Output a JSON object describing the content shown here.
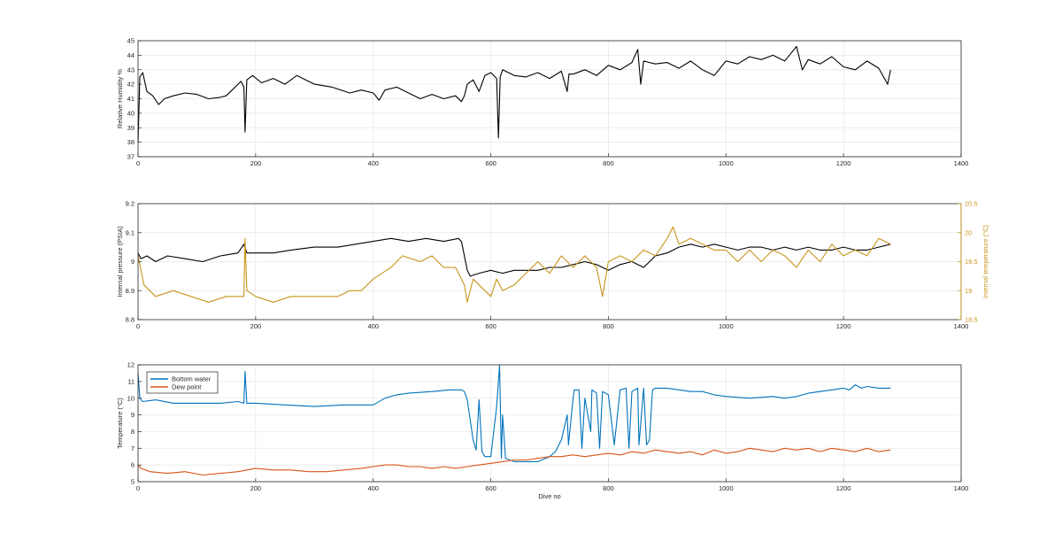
{
  "figure": {
    "xlabel": "Dive no"
  },
  "chart_data": [
    {
      "type": "line",
      "ylabel": "Relative Humidity %",
      "xlim": [
        0,
        1400
      ],
      "ylim": [
        37,
        45
      ],
      "xticks": [
        "0",
        "200",
        "400",
        "600",
        "800",
        "1000",
        "1200",
        "1400"
      ],
      "yticks": [
        "37",
        "38",
        "39",
        "40",
        "41",
        "42",
        "43",
        "44",
        "45"
      ],
      "grid": true,
      "series": [
        {
          "color": "#000000",
          "axis": "left",
          "x": [
            0,
            3,
            8,
            15,
            25,
            35,
            45,
            60,
            80,
            100,
            120,
            140,
            150,
            160,
            170,
            175,
            180,
            182,
            185,
            195,
            210,
            230,
            250,
            270,
            300,
            330,
            360,
            380,
            400,
            410,
            420,
            440,
            460,
            480,
            500,
            520,
            540,
            550,
            555,
            560,
            570,
            580,
            590,
            600,
            610,
            613,
            616,
            620,
            640,
            660,
            680,
            700,
            720,
            730,
            733,
            740,
            760,
            780,
            800,
            820,
            840,
            850,
            855,
            860,
            870,
            880,
            900,
            920,
            940,
            960,
            980,
            1000,
            1020,
            1040,
            1060,
            1080,
            1100,
            1120,
            1130,
            1140,
            1160,
            1180,
            1200,
            1220,
            1240,
            1260,
            1275,
            1280
          ],
          "y": [
            38.0,
            42.5,
            42.8,
            41.5,
            41.2,
            40.6,
            41.0,
            41.2,
            41.4,
            41.3,
            41.0,
            41.1,
            41.2,
            41.6,
            42.0,
            42.2,
            41.8,
            38.7,
            42.3,
            42.6,
            42.1,
            42.4,
            42.0,
            42.6,
            42.0,
            41.8,
            41.4,
            41.6,
            41.4,
            40.9,
            41.6,
            41.8,
            41.4,
            41.0,
            41.3,
            41.0,
            41.2,
            40.8,
            41.2,
            42.0,
            42.3,
            41.5,
            42.6,
            42.8,
            42.4,
            38.3,
            42.5,
            43.0,
            42.6,
            42.5,
            42.8,
            42.4,
            42.9,
            41.5,
            42.7,
            42.7,
            43.0,
            42.6,
            43.3,
            43.0,
            43.5,
            44.4,
            42.0,
            43.6,
            43.5,
            43.4,
            43.5,
            43.1,
            43.6,
            43.0,
            42.6,
            43.6,
            43.4,
            43.9,
            43.7,
            44.0,
            43.6,
            44.6,
            43.0,
            43.7,
            43.4,
            43.9,
            43.2,
            43.0,
            43.6,
            43.1,
            42.0,
            43.0
          ]
        }
      ]
    },
    {
      "type": "line",
      "ylabel": "Internal pressure (PSIA)",
      "y2label": "Internal temperature (°C)",
      "xlim": [
        0,
        1400
      ],
      "ylim": [
        8.8,
        9.2
      ],
      "y2lim": [
        18.5,
        20.5
      ],
      "xticks": [
        "0",
        "200",
        "400",
        "600",
        "800",
        "1000",
        "1200",
        "1400"
      ],
      "yticks": [
        "8.8",
        "8.9",
        "9",
        "9.1",
        "9.2"
      ],
      "y2ticks": [
        "18.5",
        "19",
        "19.5",
        "20",
        "20.5"
      ],
      "grid": true,
      "series": [
        {
          "color": "#000000",
          "axis": "left",
          "x": [
            0,
            5,
            15,
            30,
            50,
            80,
            110,
            140,
            170,
            180,
            185,
            200,
            230,
            260,
            300,
            340,
            370,
            400,
            430,
            460,
            490,
            520,
            545,
            550,
            555,
            560,
            565,
            580,
            600,
            620,
            640,
            660,
            680,
            700,
            720,
            740,
            760,
            780,
            800,
            820,
            840,
            860,
            880,
            900,
            920,
            940,
            960,
            980,
            1000,
            1020,
            1040,
            1060,
            1080,
            1100,
            1120,
            1140,
            1160,
            1180,
            1200,
            1220,
            1240,
            1260,
            1280
          ],
          "y": [
            9.03,
            9.01,
            9.02,
            9.0,
            9.02,
            9.01,
            9.0,
            9.02,
            9.03,
            9.06,
            9.03,
            9.03,
            9.03,
            9.04,
            9.05,
            9.05,
            9.06,
            9.07,
            9.08,
            9.07,
            9.08,
            9.07,
            9.08,
            9.07,
            9.02,
            8.97,
            8.95,
            8.96,
            8.97,
            8.96,
            8.97,
            8.97,
            8.97,
            8.98,
            8.98,
            8.99,
            9.0,
            8.99,
            8.97,
            8.99,
            9.0,
            8.98,
            9.02,
            9.03,
            9.05,
            9.06,
            9.05,
            9.06,
            9.05,
            9.04,
            9.05,
            9.05,
            9.04,
            9.05,
            9.04,
            9.05,
            9.04,
            9.04,
            9.05,
            9.04,
            9.04,
            9.05,
            9.06
          ]
        },
        {
          "color": "#c9951b",
          "axis": "right",
          "x": [
            0,
            10,
            30,
            60,
            90,
            120,
            150,
            180,
            182,
            185,
            200,
            230,
            260,
            300,
            340,
            360,
            380,
            400,
            430,
            450,
            480,
            500,
            520,
            540,
            555,
            560,
            570,
            600,
            610,
            620,
            640,
            660,
            680,
            700,
            720,
            740,
            760,
            780,
            790,
            800,
            820,
            840,
            860,
            880,
            900,
            910,
            920,
            940,
            960,
            980,
            1000,
            1020,
            1040,
            1060,
            1080,
            1100,
            1120,
            1140,
            1160,
            1180,
            1200,
            1220,
            1240,
            1260,
            1280
          ],
          "y": [
            19.6,
            19.1,
            18.9,
            19.0,
            18.9,
            18.8,
            18.9,
            18.9,
            19.9,
            19.0,
            18.9,
            18.8,
            18.9,
            18.9,
            18.9,
            19.0,
            19.0,
            19.2,
            19.4,
            19.6,
            19.5,
            19.6,
            19.4,
            19.4,
            19.1,
            18.8,
            19.2,
            18.9,
            19.2,
            19.0,
            19.1,
            19.3,
            19.5,
            19.3,
            19.6,
            19.4,
            19.6,
            19.4,
            18.9,
            19.5,
            19.6,
            19.5,
            19.7,
            19.6,
            19.9,
            20.1,
            19.8,
            19.9,
            19.8,
            19.7,
            19.7,
            19.5,
            19.7,
            19.5,
            19.7,
            19.6,
            19.4,
            19.7,
            19.5,
            19.8,
            19.6,
            19.7,
            19.6,
            19.9,
            19.8
          ]
        }
      ]
    },
    {
      "type": "line",
      "ylabel": "Temperature (°C)",
      "xlim": [
        0,
        1400
      ],
      "ylim": [
        5,
        12
      ],
      "xticks": [
        "0",
        "200",
        "400",
        "600",
        "800",
        "1000",
        "1200",
        "1400"
      ],
      "yticks": [
        "5",
        "6",
        "7",
        "8",
        "9",
        "10",
        "11",
        "12"
      ],
      "grid": true,
      "legend": {
        "placement": "top-left",
        "entries": [
          "Bottom water",
          "Dew point"
        ]
      },
      "series": [
        {
          "name": "Bottom water",
          "color": "#0072bd",
          "axis": "left",
          "x": [
            0,
            3,
            8,
            30,
            60,
            100,
            140,
            170,
            180,
            182,
            185,
            200,
            250,
            300,
            350,
            400,
            420,
            440,
            460,
            500,
            530,
            550,
            555,
            560,
            570,
            575,
            580,
            585,
            590,
            600,
            610,
            615,
            618,
            620,
            625,
            640,
            660,
            680,
            700,
            710,
            720,
            730,
            732,
            740,
            742,
            750,
            755,
            760,
            770,
            772,
            780,
            785,
            790,
            800,
            810,
            820,
            830,
            835,
            840,
            850,
            852,
            860,
            865,
            870,
            875,
            880,
            900,
            920,
            940,
            960,
            980,
            1000,
            1040,
            1080,
            1100,
            1120,
            1140,
            1160,
            1180,
            1200,
            1210,
            1220,
            1230,
            1240,
            1260,
            1280
          ],
          "y": [
            11.5,
            10.0,
            9.8,
            9.9,
            9.7,
            9.7,
            9.7,
            9.8,
            9.7,
            11.6,
            9.7,
            9.7,
            9.6,
            9.5,
            9.6,
            9.6,
            10.0,
            10.2,
            10.3,
            10.4,
            10.5,
            10.5,
            10.4,
            9.9,
            7.5,
            6.9,
            9.9,
            6.8,
            6.5,
            6.5,
            9.5,
            12.0,
            6.4,
            9.0,
            6.4,
            6.2,
            6.2,
            6.2,
            6.5,
            6.8,
            7.5,
            9.0,
            7.2,
            10.0,
            10.5,
            10.5,
            7.0,
            10.0,
            8.0,
            10.5,
            10.3,
            7.0,
            10.4,
            10.2,
            7.2,
            10.5,
            10.6,
            7.0,
            10.4,
            10.6,
            7.2,
            10.6,
            7.2,
            7.5,
            10.5,
            10.6,
            10.6,
            10.5,
            10.4,
            10.4,
            10.2,
            10.1,
            10.0,
            10.1,
            10.0,
            10.1,
            10.3,
            10.4,
            10.5,
            10.6,
            10.5,
            10.8,
            10.6,
            10.7,
            10.6,
            10.6
          ]
        },
        {
          "name": "Dew point",
          "color": "#d95319",
          "axis": "left",
          "x": [
            0,
            5,
            20,
            50,
            80,
            110,
            140,
            170,
            200,
            230,
            260,
            290,
            320,
            350,
            380,
            400,
            420,
            440,
            460,
            480,
            500,
            520,
            540,
            560,
            580,
            600,
            620,
            640,
            660,
            680,
            700,
            720,
            740,
            760,
            780,
            800,
            820,
            840,
            860,
            880,
            900,
            920,
            940,
            960,
            980,
            1000,
            1020,
            1040,
            1060,
            1080,
            1100,
            1120,
            1140,
            1160,
            1180,
            1200,
            1220,
            1240,
            1260,
            1280
          ],
          "y": [
            6.0,
            5.8,
            5.6,
            5.5,
            5.6,
            5.4,
            5.5,
            5.6,
            5.8,
            5.7,
            5.7,
            5.6,
            5.6,
            5.7,
            5.8,
            5.9,
            6.0,
            6.0,
            5.9,
            5.9,
            5.8,
            5.9,
            5.8,
            5.9,
            6.0,
            6.1,
            6.2,
            6.3,
            6.3,
            6.4,
            6.5,
            6.5,
            6.6,
            6.5,
            6.6,
            6.7,
            6.6,
            6.8,
            6.7,
            6.9,
            6.8,
            6.7,
            6.8,
            6.6,
            6.9,
            6.7,
            6.8,
            7.0,
            6.9,
            6.8,
            7.0,
            6.9,
            7.0,
            6.8,
            7.0,
            6.9,
            6.8,
            7.0,
            6.8,
            6.9
          ]
        }
      ]
    }
  ]
}
